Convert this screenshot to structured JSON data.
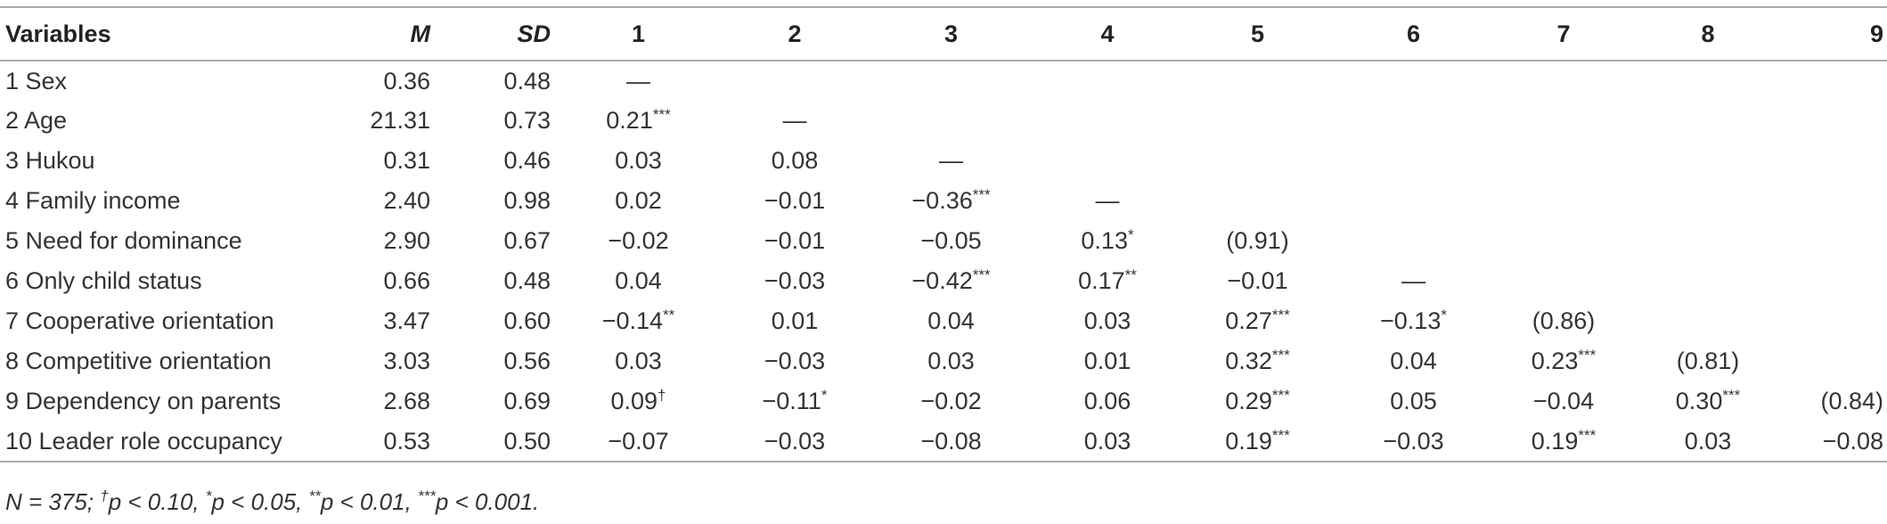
{
  "table": {
    "header": [
      "Variables",
      "M",
      "SD",
      "1",
      "2",
      "3",
      "4",
      "5",
      "6",
      "7",
      "8",
      "9"
    ],
    "rows": [
      [
        "1 Sex",
        "0.36",
        "0.48",
        "—"
      ],
      [
        "2 Age",
        "21.31",
        "0.73",
        {
          "text": "0.21",
          "sup": "***"
        },
        "—"
      ],
      [
        "3 Hukou",
        "0.31",
        "0.46",
        "0.03",
        "0.08",
        "—"
      ],
      [
        "4 Family income",
        "2.40",
        "0.98",
        "0.02",
        "−0.01",
        {
          "text": "−0.36",
          "sup": "***"
        },
        "—"
      ],
      [
        "5 Need for dominance",
        "2.90",
        "0.67",
        "−0.02",
        "−0.01",
        "−0.05",
        {
          "text": "0.13",
          "sup": "*"
        },
        "(0.91)"
      ],
      [
        "6 Only child status",
        "0.66",
        "0.48",
        "0.04",
        "−0.03",
        {
          "text": "−0.42",
          "sup": "***"
        },
        {
          "text": "0.17",
          "sup": "**"
        },
        "−0.01",
        "—"
      ],
      [
        "7 Cooperative orientation",
        "3.47",
        "0.60",
        {
          "text": "−0.14",
          "sup": "**"
        },
        "0.01",
        "0.04",
        "0.03",
        {
          "text": "0.27",
          "sup": "***"
        },
        {
          "text": "−0.13",
          "sup": "*"
        },
        "(0.86)"
      ],
      [
        "8 Competitive orientation",
        "3.03",
        "0.56",
        "0.03",
        "−0.03",
        "0.03",
        "0.01",
        {
          "text": "0.32",
          "sup": "***"
        },
        "0.04",
        {
          "text": "0.23",
          "sup": "***"
        },
        "(0.81)"
      ],
      [
        "9 Dependency on parents",
        "2.68",
        "0.69",
        {
          "text": "0.09",
          "sup": "†"
        },
        {
          "text": "−0.11",
          "sup": "*"
        },
        "−0.02",
        "0.06",
        {
          "text": "0.29",
          "sup": "***"
        },
        "0.05",
        "−0.04",
        {
          "text": "0.30",
          "sup": "***"
        },
        "(0.84)"
      ],
      [
        "10 Leader role occupancy",
        "0.53",
        "0.50",
        "−0.07",
        "−0.03",
        "−0.08",
        "0.03",
        {
          "text": "0.19",
          "sup": "***"
        },
        "−0.03",
        {
          "text": "0.19",
          "sup": "***"
        },
        "0.03",
        "−0.08"
      ]
    ],
    "note": [
      {
        "text": "N = 375; "
      },
      {
        "sup": "†"
      },
      {
        "text": "p < 0.10, "
      },
      {
        "sup": "*"
      },
      {
        "text": "p < 0.05, "
      },
      {
        "sup": "**"
      },
      {
        "text": "p < 0.01, "
      },
      {
        "sup": "***"
      },
      {
        "text": "p < 0.001."
      }
    ]
  }
}
